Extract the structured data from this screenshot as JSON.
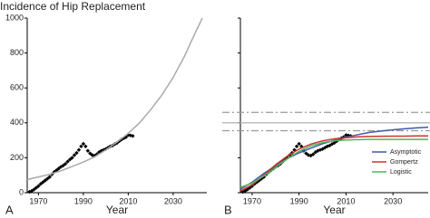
{
  "chart_data": [
    {
      "type": "line",
      "title": "Incidence of Hip Replacement",
      "panel_label": "A",
      "xlabel": "Year",
      "xlim": [
        1965,
        2045
      ],
      "xticks": [
        1970,
        1990,
        2010,
        2030
      ],
      "ylim": [
        0,
        1000
      ],
      "yticks": [
        0,
        200,
        400,
        600,
        800,
        1000
      ],
      "ytick_labels": true,
      "series": [
        {
          "color": "#000000",
          "style": "points",
          "x": [
            1966,
            1967,
            1968,
            1969,
            1970,
            1971,
            1972,
            1973,
            1974,
            1975,
            1976,
            1977,
            1978,
            1979,
            1980,
            1981,
            1982,
            1983,
            1984,
            1985,
            1986,
            1987,
            1988,
            1989,
            1990,
            1991,
            1992,
            1993,
            1994,
            1995,
            1996,
            1997,
            1998,
            1999,
            2000,
            2001,
            2002,
            2003,
            2004,
            2005,
            2006,
            2007,
            2008,
            2009,
            2010,
            2011,
            2012
          ],
          "values": [
            5,
            10,
            18,
            28,
            38,
            50,
            60,
            70,
            80,
            90,
            105,
            118,
            128,
            138,
            148,
            155,
            165,
            178,
            190,
            200,
            215,
            228,
            245,
            265,
            280,
            265,
            240,
            225,
            215,
            212,
            220,
            232,
            240,
            245,
            250,
            258,
            265,
            270,
            278,
            285,
            295,
            305,
            312,
            318,
            330,
            328,
            325
          ]
        },
        {
          "color": "#aaaaaa",
          "style": "line",
          "x": [
            1965,
            1970,
            1975,
            1980,
            1985,
            1990,
            1995,
            2000,
            2005,
            2010,
            2015,
            2020,
            2025,
            2030,
            2035,
            2040,
            2043
          ],
          "values": [
            75,
            90,
            105,
            125,
            150,
            175,
            205,
            245,
            290,
            340,
            400,
            475,
            560,
            660,
            780,
            920,
            1000
          ]
        }
      ]
    },
    {
      "type": "line",
      "panel_label": "B",
      "xlabel": "Year",
      "xlim": [
        1965,
        2045
      ],
      "xticks": [
        1970,
        1990,
        2010,
        2030
      ],
      "ylim": [
        0,
        1000
      ],
      "yticks": [
        0,
        200,
        400,
        600,
        800,
        1000
      ],
      "ytick_labels": false,
      "legend": "lower right",
      "reference_lines": [
        {
          "value": 460,
          "style": "dash-dot",
          "color": "#999999"
        },
        {
          "value": 400,
          "style": "solid",
          "color": "#aaaaaa"
        },
        {
          "value": 355,
          "style": "dash-dot",
          "color": "#999999"
        }
      ],
      "series": [
        {
          "color": "#000000",
          "style": "points",
          "x": [
            1966,
            1967,
            1968,
            1969,
            1970,
            1971,
            1972,
            1973,
            1974,
            1975,
            1976,
            1977,
            1978,
            1979,
            1980,
            1981,
            1982,
            1983,
            1984,
            1985,
            1986,
            1987,
            1988,
            1989,
            1990,
            1991,
            1992,
            1993,
            1994,
            1995,
            1996,
            1997,
            1998,
            1999,
            2000,
            2001,
            2002,
            2003,
            2004,
            2005,
            2006,
            2007,
            2008,
            2009,
            2010,
            2011,
            2012
          ],
          "values": [
            5,
            10,
            18,
            28,
            38,
            50,
            60,
            70,
            80,
            90,
            105,
            118,
            128,
            138,
            148,
            155,
            165,
            178,
            190,
            200,
            215,
            228,
            245,
            265,
            280,
            265,
            240,
            225,
            215,
            212,
            220,
            232,
            240,
            245,
            250,
            258,
            265,
            270,
            278,
            285,
            295,
            305,
            312,
            318,
            330,
            328,
            325
          ]
        },
        {
          "name": "Asymptotic",
          "color": "#3d5aa8",
          "style": "line",
          "x": [
            1965,
            1970,
            1975,
            1980,
            1985,
            1990,
            1995,
            2000,
            2005,
            2010,
            2015,
            2020,
            2025,
            2030,
            2035,
            2040,
            2045
          ],
          "values": [
            20,
            60,
            110,
            155,
            195,
            228,
            255,
            280,
            300,
            318,
            332,
            345,
            353,
            360,
            366,
            371,
            375
          ]
        },
        {
          "name": "Gompertz",
          "color": "#cc3333",
          "style": "line",
          "x": [
            1965,
            1970,
            1975,
            1980,
            1985,
            1990,
            1995,
            2000,
            2005,
            2010,
            2015,
            2020,
            2025,
            2030,
            2035,
            2040,
            2045
          ],
          "values": [
            10,
            45,
            100,
            160,
            210,
            250,
            278,
            297,
            308,
            315,
            320,
            322,
            323,
            324,
            324,
            325,
            325
          ]
        },
        {
          "name": "Logistic",
          "color": "#55b455",
          "style": "line",
          "x": [
            1965,
            1970,
            1975,
            1980,
            1985,
            1990,
            1995,
            2000,
            2005,
            2010,
            2015,
            2020,
            2025,
            2030,
            2035,
            2040,
            2045
          ],
          "values": [
            30,
            55,
            95,
            145,
            195,
            237,
            268,
            287,
            297,
            302,
            304,
            305,
            305,
            305,
            305,
            305,
            305
          ]
        }
      ]
    }
  ]
}
